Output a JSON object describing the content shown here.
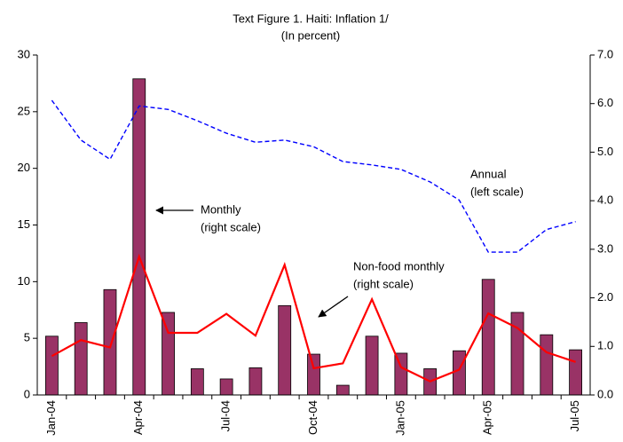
{
  "chart_data": {
    "type": "bar-line",
    "title": "Text Figure 1. Haiti: Inflation 1/",
    "subtitle": "(In percent)",
    "categories": [
      "Jan-04",
      null,
      null,
      "Apr-04",
      null,
      null,
      "Jul-04",
      null,
      null,
      "Oct-04",
      null,
      null,
      "Jan-05",
      null,
      null,
      "Apr-05",
      null,
      null,
      "Jul-05"
    ],
    "ylim": [
      0,
      30
    ],
    "yticks": [
      0,
      5,
      10,
      15,
      20,
      25,
      30
    ],
    "y2lim": [
      0,
      7
    ],
    "y2ticks": [
      {
        "value": 0,
        "label": "0.0"
      },
      {
        "value": 1,
        "label": "1.0"
      },
      {
        "value": 2,
        "label": "2.0"
      },
      {
        "value": 3,
        "label": "3.0"
      },
      {
        "value": 4,
        "label": "4.0"
      },
      {
        "value": 5,
        "label": "5.0"
      },
      {
        "value": 6,
        "label": "6.0"
      },
      {
        "value": 7,
        "label": "7.0"
      }
    ],
    "series": [
      {
        "name": "Monthly",
        "note": "(right scale)",
        "kind": "bar",
        "axis": "y2",
        "color": "#993366",
        "values": [
          1.21,
          1.49,
          2.17,
          6.51,
          1.7,
          0.54,
          0.33,
          0.56,
          1.84,
          0.84,
          0.2,
          1.21,
          0.86,
          0.54,
          0.91,
          2.38,
          1.7,
          1.24,
          0.93
        ]
      },
      {
        "name": "Annual",
        "note": "(left scale)",
        "kind": "dashed-line",
        "color": "#0000ff",
        "values": [
          26.0,
          22.5,
          20.8,
          25.5,
          25.2,
          24.2,
          23.1,
          22.3,
          22.5,
          21.9,
          20.6,
          20.3,
          19.9,
          18.8,
          17.2,
          12.6,
          12.6,
          14.6,
          15.3
        ]
      },
      {
        "name": "Non-food monthly",
        "note": "(right scale)",
        "kind": "line",
        "axis": "y2",
        "color": "#ff0000",
        "values": [
          0.8,
          1.13,
          0.98,
          2.85,
          1.28,
          1.28,
          1.67,
          1.22,
          2.68,
          0.55,
          0.65,
          1.97,
          0.57,
          0.28,
          0.52,
          1.68,
          1.38,
          0.88,
          0.68
        ]
      }
    ]
  }
}
